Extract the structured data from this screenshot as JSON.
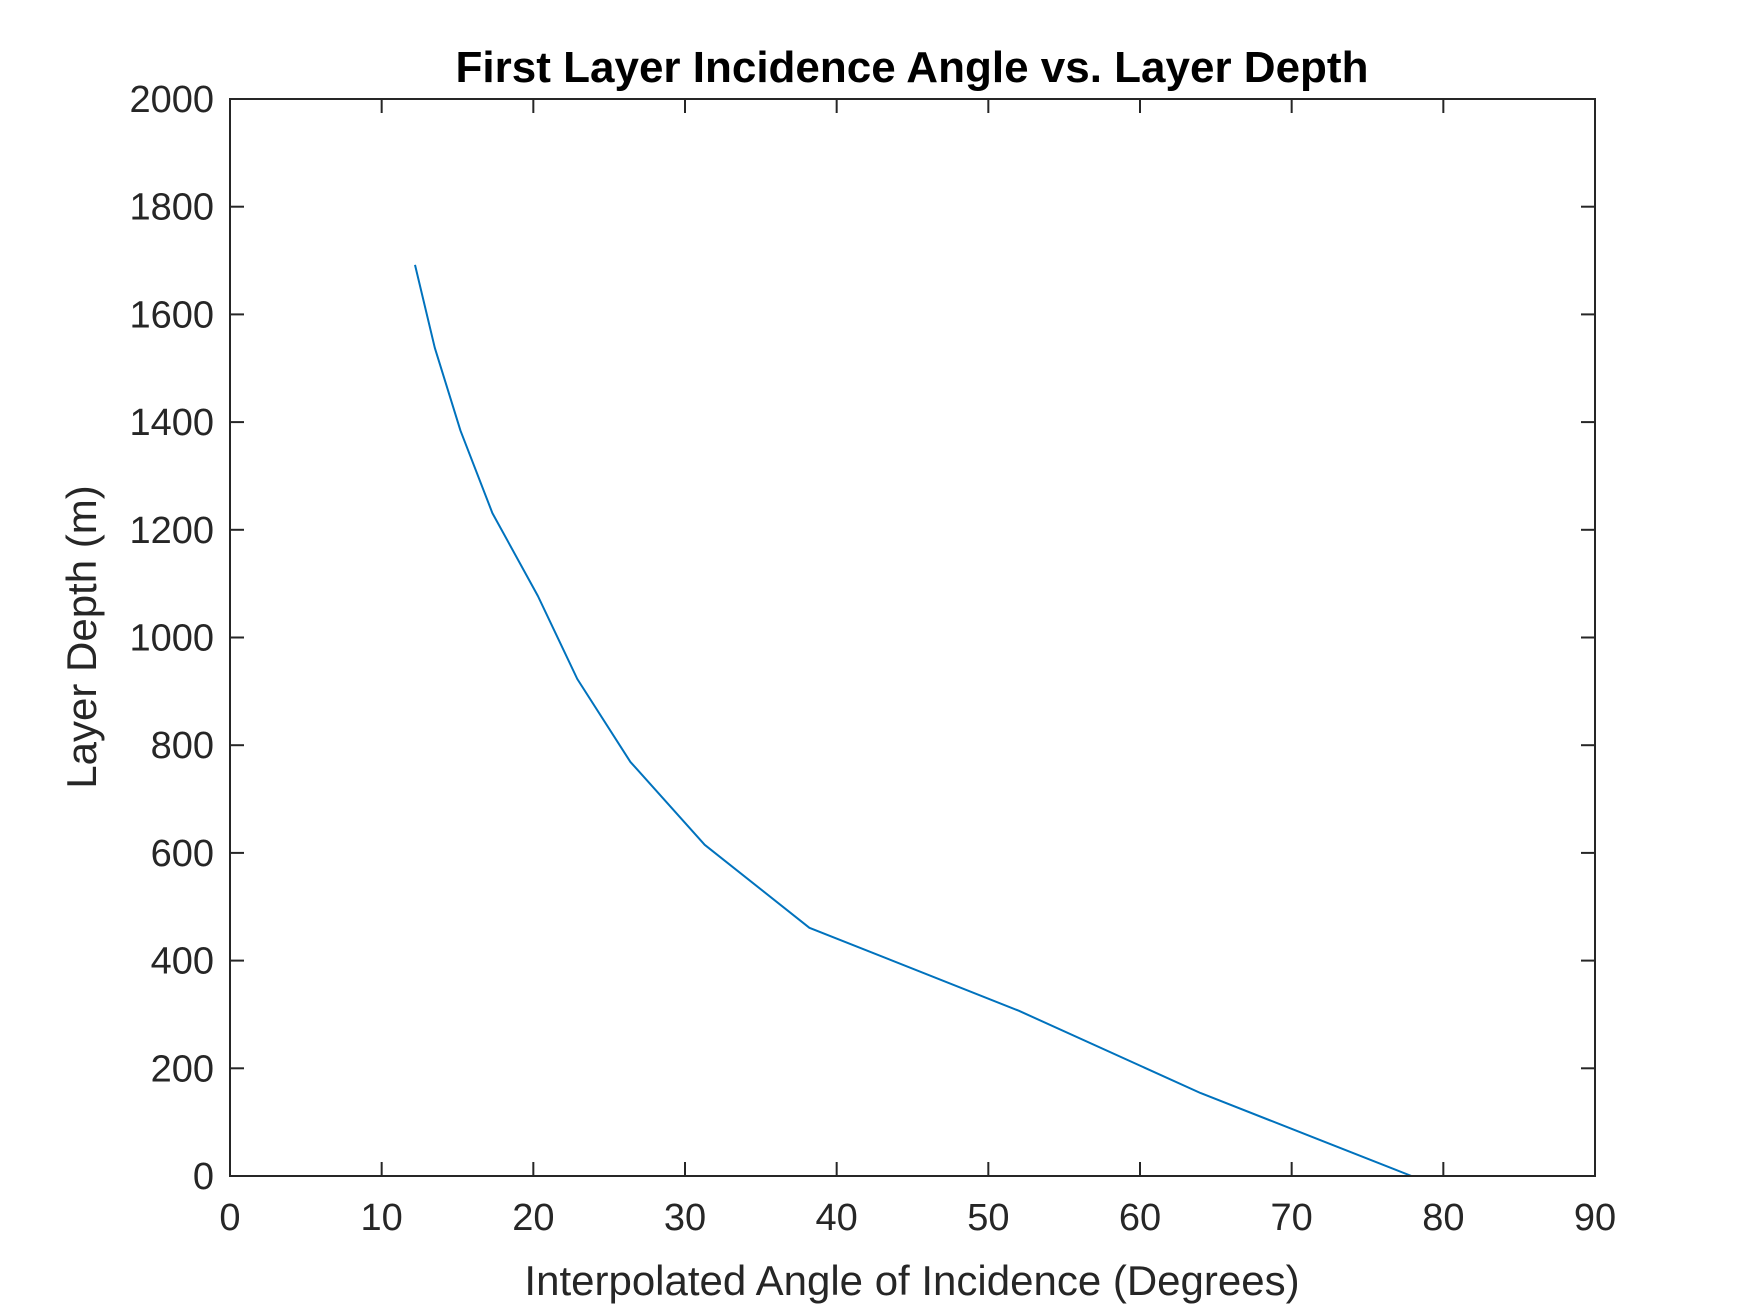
{
  "chart_data": {
    "type": "line",
    "title": "First Layer Incidence Angle vs. Layer Depth",
    "xlabel": "Interpolated Angle of Incidence (Degrees)",
    "ylabel": "Layer Depth (m)",
    "xlim": [
      0,
      90
    ],
    "ylim": [
      0,
      2000
    ],
    "xticks": [
      "0",
      "10",
      "20",
      "30",
      "40",
      "50",
      "60",
      "70",
      "80",
      "90"
    ],
    "yticks": [
      "0",
      "200",
      "400",
      "600",
      "800",
      "1000",
      "1200",
      "1400",
      "1600",
      "1800",
      "2000"
    ],
    "grid": false,
    "legend": "none",
    "series": [
      {
        "color": "#0072BD",
        "x": [
          77.9,
          64.0,
          52.0,
          38.2,
          31.3,
          26.4,
          22.9,
          20.3,
          17.3,
          15.2,
          13.5,
          12.2
        ],
        "y": [
          0,
          154,
          307,
          461,
          615,
          769,
          923,
          1077,
          1231,
          1384,
          1538,
          1692
        ]
      }
    ]
  }
}
